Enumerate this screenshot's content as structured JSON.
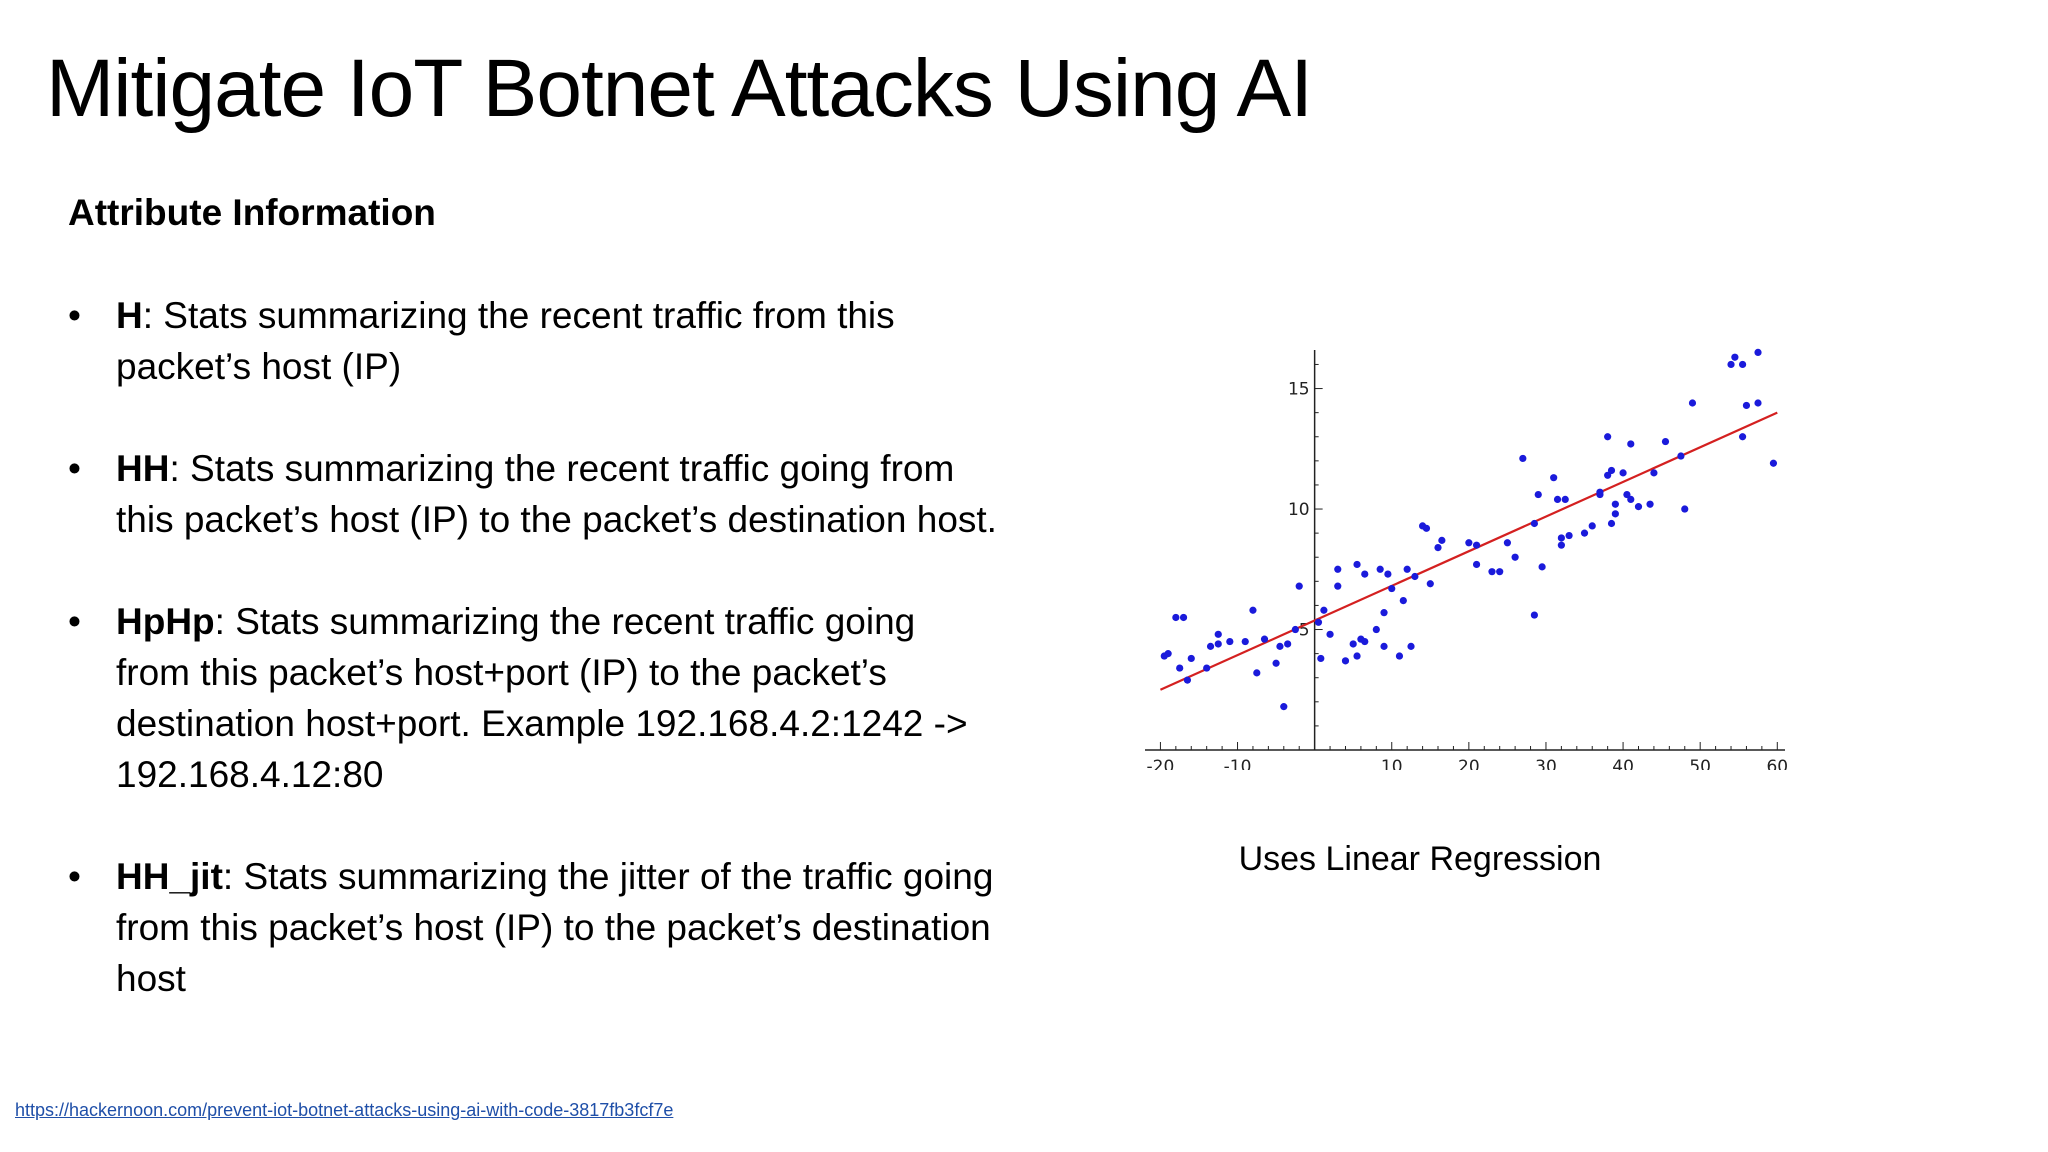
{
  "slide": {
    "title": "Mitigate IoT Botnet Attacks Using AI",
    "subheading": "Attribute Information",
    "bullets": [
      {
        "term": "H",
        "text": ": Stats summarizing the recent traffic from this packet’s host (IP)"
      },
      {
        "term": "HH",
        "text": ": Stats summarizing the recent traffic going from this packet’s host (IP) to the packet’s destination host."
      },
      {
        "term": "HpHp",
        "text": ": Stats summarizing the recent traffic going from this packet’s host+port (IP) to the packet’s destination host+port. Example 192.168.4.2:1242 -> 192.168.4.12:80"
      },
      {
        "term": "HH_jit",
        "text": ": Stats summarizing the jitter of the traffic going from this packet’s host (IP) to the packet’s destination host"
      }
    ],
    "chart_caption": "Uses Linear Regression",
    "source_url": "https://hackernoon.com/prevent-iot-botnet-attacks-using-ai-with-code-3817fb3fcf7e"
  },
  "colors": {
    "points": "#1a1adb",
    "fit_line": "#d42020",
    "axis": "#222222",
    "link": "#1f4fa8"
  },
  "chart_data": {
    "type": "scatter",
    "title": "",
    "xlabel": "",
    "ylabel": "",
    "xlim": [
      -22,
      61
    ],
    "ylim": [
      0,
      16.6
    ],
    "x_ticks": [
      -20,
      -10,
      10,
      20,
      30,
      40,
      50,
      60
    ],
    "y_ticks": [
      5,
      10,
      15
    ],
    "grid": false,
    "fit_line": {
      "from": [
        -20,
        2.5
      ],
      "to": [
        60,
        14
      ]
    },
    "points": [
      [
        -19.5,
        3.9
      ],
      [
        -19,
        4.0
      ],
      [
        -18,
        5.5
      ],
      [
        -17,
        5.5
      ],
      [
        -17.5,
        3.4
      ],
      [
        -16.5,
        2.9
      ],
      [
        -16,
        3.8
      ],
      [
        -14,
        3.4
      ],
      [
        -13.5,
        4.3
      ],
      [
        -12.5,
        4.4
      ],
      [
        -12.5,
        4.8
      ],
      [
        -11,
        4.5
      ],
      [
        -9,
        4.5
      ],
      [
        -8,
        5.8
      ],
      [
        -7.5,
        3.2
      ],
      [
        -6.5,
        4.6
      ],
      [
        -5,
        3.6
      ],
      [
        -4.5,
        4.3
      ],
      [
        -4,
        1.8
      ],
      [
        -3.5,
        4.4
      ],
      [
        -2,
        6.8
      ],
      [
        -2.5,
        5.0
      ],
      [
        0.5,
        5.3
      ],
      [
        0.8,
        3.8
      ],
      [
        1.2,
        5.8
      ],
      [
        2,
        4.8
      ],
      [
        3,
        7.5
      ],
      [
        3,
        6.8
      ],
      [
        4,
        3.7
      ],
      [
        5,
        4.4
      ],
      [
        5.5,
        3.9
      ],
      [
        5.5,
        7.7
      ],
      [
        6,
        4.6
      ],
      [
        6.5,
        4.5
      ],
      [
        6.5,
        7.3
      ],
      [
        8,
        5.0
      ],
      [
        8.5,
        7.5
      ],
      [
        9,
        4.3
      ],
      [
        9,
        5.7
      ],
      [
        9.5,
        7.3
      ],
      [
        10,
        6.7
      ],
      [
        11,
        3.9
      ],
      [
        11.5,
        6.2
      ],
      [
        12,
        7.5
      ],
      [
        12.5,
        4.3
      ],
      [
        13,
        7.2
      ],
      [
        14,
        9.3
      ],
      [
        14.5,
        9.2
      ],
      [
        15,
        6.9
      ],
      [
        16,
        8.4
      ],
      [
        16.5,
        8.7
      ],
      [
        20,
        8.6
      ],
      [
        21,
        8.5
      ],
      [
        21,
        7.7
      ],
      [
        23,
        7.4
      ],
      [
        24,
        7.4
      ],
      [
        25,
        8.6
      ],
      [
        26,
        8.0
      ],
      [
        27,
        12.1
      ],
      [
        28.5,
        5.6
      ],
      [
        28.5,
        9.4
      ],
      [
        29,
        10.6
      ],
      [
        29.5,
        7.6
      ],
      [
        31,
        11.3
      ],
      [
        31.5,
        10.4
      ],
      [
        32,
        8.5
      ],
      [
        32,
        8.8
      ],
      [
        32.5,
        10.4
      ],
      [
        33,
        8.9
      ],
      [
        35,
        9.0
      ],
      [
        36,
        9.3
      ],
      [
        37,
        10.7
      ],
      [
        37,
        10.6
      ],
      [
        38,
        11.4
      ],
      [
        38,
        13.0
      ],
      [
        38.5,
        11.6
      ],
      [
        38.5,
        9.4
      ],
      [
        39,
        9.8
      ],
      [
        39,
        10.2
      ],
      [
        40,
        11.5
      ],
      [
        40.5,
        10.6
      ],
      [
        41,
        10.4
      ],
      [
        41,
        12.7
      ],
      [
        42,
        10.1
      ],
      [
        43.5,
        10.2
      ],
      [
        44,
        11.5
      ],
      [
        45.5,
        12.8
      ],
      [
        47.5,
        12.2
      ],
      [
        48,
        10.0
      ],
      [
        49,
        14.4
      ],
      [
        54,
        16.0
      ],
      [
        54.5,
        16.3
      ],
      [
        55.5,
        13.0
      ],
      [
        55.5,
        16.0
      ],
      [
        56,
        14.3
      ],
      [
        57.5,
        14.4
      ],
      [
        57.5,
        16.5
      ],
      [
        59.5,
        11.9
      ]
    ]
  }
}
